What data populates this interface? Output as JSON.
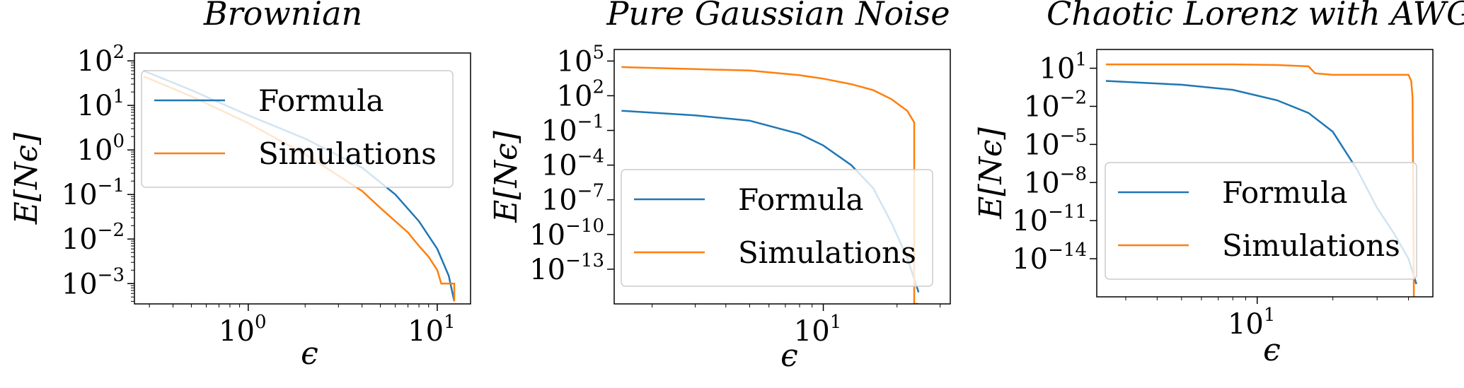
{
  "colors": {
    "formula": "#1f77b4",
    "simulations": "#ff7f0e",
    "axes": "#000000",
    "legend_border": "#cccccc"
  },
  "chart_data": [
    {
      "type": "line",
      "title": "Brownian",
      "xlabel": "ϵ",
      "ylabel": "E[Nϵ]",
      "xscale": "log",
      "yscale": "log",
      "xlim": [
        0.25,
        15
      ],
      "ylim": [
        0.00035,
        150
      ],
      "xticks": [
        {
          "value": 1,
          "label": "10",
          "exp": "0"
        },
        {
          "value": 10,
          "label": "10",
          "exp": "1"
        }
      ],
      "yticks": [
        {
          "value": 0.001,
          "label": "10",
          "exp": "−3"
        },
        {
          "value": 0.01,
          "label": "10",
          "exp": "−2"
        },
        {
          "value": 0.1,
          "label": "10",
          "exp": "−1"
        },
        {
          "value": 1,
          "label": "10",
          "exp": "0"
        },
        {
          "value": 10,
          "label": "10",
          "exp": "1"
        },
        {
          "value": 100,
          "label": "10",
          "exp": "2"
        }
      ],
      "legend": {
        "placement": "upper-right",
        "entries": [
          "Formula",
          "Simulations"
        ]
      },
      "grid": false,
      "series": [
        {
          "name": "Formula",
          "x": [
            0.28,
            0.5,
            1,
            2,
            4,
            6,
            8,
            10,
            11.5,
            12.3
          ],
          "y": [
            60,
            22,
            6,
            1.8,
            0.4,
            0.1,
            0.025,
            0.006,
            0.0015,
            0.0004
          ]
        },
        {
          "name": "Simulations",
          "x": [
            0.28,
            0.5,
            1,
            2,
            4,
            5,
            6,
            7,
            8,
            9,
            10,
            10.5,
            12.3,
            12.3
          ],
          "y": [
            45,
            16,
            4,
            0.8,
            0.12,
            0.05,
            0.025,
            0.014,
            0.007,
            0.004,
            0.002,
            0.001,
            0.001,
            0.0004
          ]
        }
      ]
    },
    {
      "type": "line",
      "title": "Pure Gaussian Noise",
      "xlabel": "ϵ",
      "ylabel": "E[Nϵ]",
      "xscale": "log",
      "yscale": "log",
      "xlim": [
        1.4,
        33
      ],
      "ylim": [
        1e-16,
        1000000.0
      ],
      "xticks": [
        {
          "value": 10,
          "label": "10",
          "exp": "1"
        }
      ],
      "yticks": [
        {
          "value": 1e-13,
          "label": "10",
          "exp": "−13"
        },
        {
          "value": 1e-10,
          "label": "10",
          "exp": "−10"
        },
        {
          "value": 1e-07,
          "label": "10",
          "exp": "−7"
        },
        {
          "value": 0.0001,
          "label": "10",
          "exp": "−4"
        },
        {
          "value": 0.1,
          "label": "10",
          "exp": "−1"
        },
        {
          "value": 100,
          "label": "10",
          "exp": "2"
        },
        {
          "value": 100000,
          "label": "10",
          "exp": "5"
        }
      ],
      "legend": {
        "placement": "lower-right",
        "entries": [
          "Formula",
          "Simulations"
        ]
      },
      "grid": false,
      "series": [
        {
          "name": "Formula",
          "x": [
            1.5,
            3,
            5,
            8,
            10,
            13,
            16,
            19,
            22,
            24.5
          ],
          "y": [
            5,
            2,
            0.7,
            0.05,
            0.005,
            0.0001,
            1e-06,
            1e-09,
            1e-12,
            1e-15
          ]
        },
        {
          "name": "Simulations",
          "x": [
            1.5,
            3,
            5,
            8,
            10,
            13,
            16,
            19,
            22,
            23.5,
            23.5,
            24.5
          ],
          "y": [
            30000,
            20000,
            15000,
            6000,
            3000,
            1000,
            300,
            50,
            5,
            0.5,
            1e-16,
            1e-16
          ]
        }
      ]
    },
    {
      "type": "line",
      "title": "Chaotic Lorenz with AWGN",
      "xlabel": "ϵ",
      "ylabel": "E[Nϵ]",
      "xscale": "log",
      "yscale": "log",
      "xlim": [
        2.3,
        50
      ],
      "ylim": [
        1e-17,
        300
      ],
      "xticks": [
        {
          "value": 10,
          "label": "10",
          "exp": "1"
        }
      ],
      "yticks": [
        {
          "value": 1e-14,
          "label": "10",
          "exp": "−14"
        },
        {
          "value": 1e-11,
          "label": "10",
          "exp": "−11"
        },
        {
          "value": 1e-08,
          "label": "10",
          "exp": "−8"
        },
        {
          "value": 1e-05,
          "label": "10",
          "exp": "−5"
        },
        {
          "value": 0.01,
          "label": "10",
          "exp": "−2"
        },
        {
          "value": 10,
          "label": "10",
          "exp": "1"
        }
      ],
      "legend": {
        "placement": "lower-left",
        "entries": [
          "Formula",
          "Simulations"
        ]
      },
      "grid": false,
      "series": [
        {
          "name": "Formula",
          "x": [
            2.5,
            5,
            8,
            12,
            16,
            20,
            25,
            30,
            35,
            40,
            43
          ],
          "y": [
            1,
            0.5,
            0.2,
            0.03,
            0.003,
            0.0001,
            1e-07,
            1e-10,
            1e-12,
            1e-14,
            1e-16
          ]
        },
        {
          "name": "Simulations",
          "x": [
            2.5,
            5,
            8,
            12,
            16,
            17,
            20,
            25,
            30,
            35,
            40,
            41,
            41.5,
            42,
            42
          ],
          "y": [
            20,
            20,
            20,
            18,
            14,
            4,
            3,
            3,
            3,
            3,
            3,
            1,
            0.05,
            1e-16,
            1e-17
          ]
        }
      ]
    }
  ]
}
